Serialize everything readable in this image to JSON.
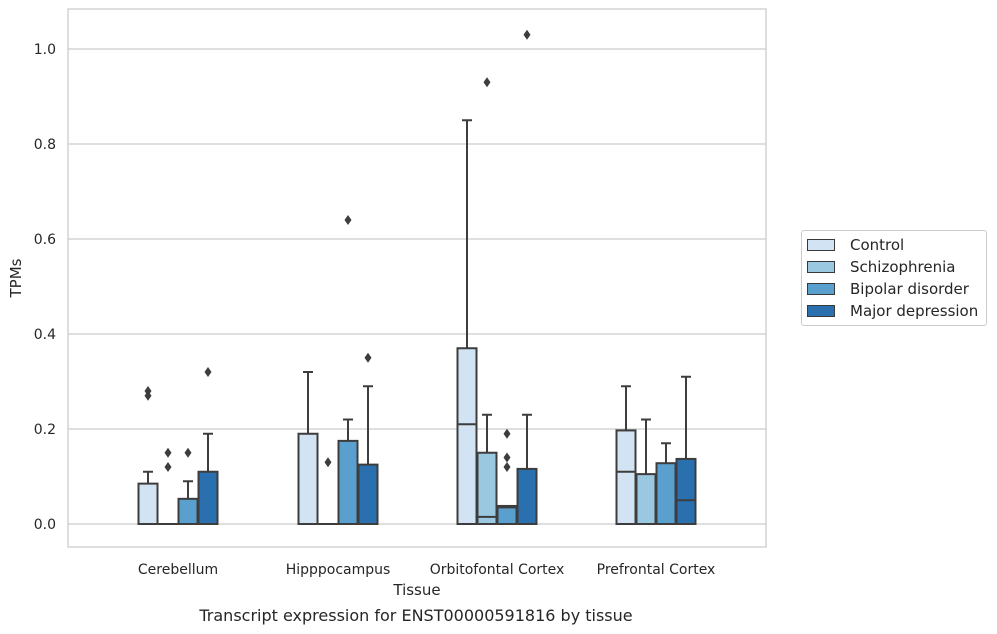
{
  "chart_data": {
    "type": "box",
    "ylabel": "TPMs",
    "xlabel": "Tissue",
    "caption": "Transcript expression for ENST00000591816 by tissue",
    "ylim": [
      -0.05,
      1.08
    ],
    "yticks": [
      0.0,
      0.2,
      0.4,
      0.6,
      0.8,
      1.0
    ],
    "ytick_labels": [
      "0.0",
      "0.2",
      "0.4",
      "0.6",
      "0.8",
      "1.0"
    ],
    "grid": "horizontal",
    "legend_position": "right",
    "categories": [
      "Cerebellum",
      "Hipppocampus",
      "Orbitofontal Cortex",
      "Prefrontal Cortex"
    ],
    "series": [
      {
        "name": "Control",
        "color": "#d2e3f3",
        "boxes": [
          {
            "q1": 0.0,
            "median": 0.0,
            "q3": 0.085,
            "whisker_low": 0.0,
            "whisker_high": 0.11,
            "outliers": [
              0.27,
              0.28
            ]
          },
          {
            "q1": 0.0,
            "median": 0.0,
            "q3": 0.19,
            "whisker_low": 0.0,
            "whisker_high": 0.32,
            "outliers": []
          },
          {
            "q1": 0.0,
            "median": 0.21,
            "q3": 0.37,
            "whisker_low": 0.0,
            "whisker_high": 0.85,
            "outliers": []
          },
          {
            "q1": 0.0,
            "median": 0.11,
            "q3": 0.197,
            "whisker_low": 0.0,
            "whisker_high": 0.29,
            "outliers": []
          }
        ]
      },
      {
        "name": "Schizophrenia",
        "color": "#9ac8e0",
        "boxes": [
          {
            "q1": 0.0,
            "median": 0.0,
            "q3": 0.0,
            "whisker_low": 0.0,
            "whisker_high": 0.0,
            "outliers": [
              0.12,
              0.15
            ]
          },
          {
            "q1": 0.0,
            "median": 0.0,
            "q3": 0.0,
            "whisker_low": 0.0,
            "whisker_high": 0.0,
            "outliers": [
              0.13
            ]
          },
          {
            "q1": 0.0,
            "median": 0.015,
            "q3": 0.15,
            "whisker_low": 0.0,
            "whisker_high": 0.23,
            "outliers": [
              0.93
            ]
          },
          {
            "q1": 0.0,
            "median": 0.0,
            "q3": 0.105,
            "whisker_low": 0.0,
            "whisker_high": 0.22,
            "outliers": []
          }
        ]
      },
      {
        "name": "Bipolar disorder",
        "color": "#5aa0ce",
        "boxes": [
          {
            "q1": 0.0,
            "median": 0.0,
            "q3": 0.053,
            "whisker_low": 0.0,
            "whisker_high": 0.09,
            "outliers": [
              0.15
            ]
          },
          {
            "q1": 0.0,
            "median": 0.0,
            "q3": 0.175,
            "whisker_low": 0.0,
            "whisker_high": 0.22,
            "outliers": [
              0.64
            ]
          },
          {
            "q1": 0.0,
            "median": 0.035,
            "q3": 0.038,
            "whisker_low": 0.0,
            "whisker_high": 0.038,
            "outliers": [
              0.12,
              0.14,
              0.19
            ]
          },
          {
            "q1": 0.0,
            "median": 0.0,
            "q3": 0.128,
            "whisker_low": 0.0,
            "whisker_high": 0.17,
            "outliers": []
          }
        ]
      },
      {
        "name": "Major depression",
        "color": "#2a6fae",
        "boxes": [
          {
            "q1": 0.0,
            "median": 0.0,
            "q3": 0.11,
            "whisker_low": 0.0,
            "whisker_high": 0.19,
            "outliers": [
              0.32
            ]
          },
          {
            "q1": 0.0,
            "median": 0.0,
            "q3": 0.125,
            "whisker_low": 0.0,
            "whisker_high": 0.29,
            "outliers": [
              0.35
            ]
          },
          {
            "q1": 0.0,
            "median": 0.0,
            "q3": 0.116,
            "whisker_low": 0.0,
            "whisker_high": 0.23,
            "outliers": [
              1.03
            ]
          },
          {
            "q1": 0.0,
            "median": 0.05,
            "q3": 0.137,
            "whisker_low": 0.0,
            "whisker_high": 0.31,
            "outliers": []
          }
        ]
      }
    ]
  }
}
